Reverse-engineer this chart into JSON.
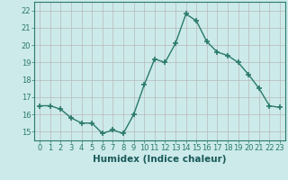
{
  "x": [
    0,
    1,
    2,
    3,
    4,
    5,
    6,
    7,
    8,
    9,
    10,
    11,
    12,
    13,
    14,
    15,
    16,
    17,
    18,
    19,
    20,
    21,
    22,
    23
  ],
  "y": [
    16.5,
    16.5,
    16.3,
    15.8,
    15.5,
    15.5,
    14.9,
    15.1,
    14.9,
    16.0,
    17.7,
    19.2,
    19.0,
    20.1,
    21.8,
    21.4,
    20.2,
    19.6,
    19.4,
    19.0,
    18.3,
    17.5,
    16.5,
    16.4
  ],
  "line_color": "#2a7a6a",
  "marker": "+",
  "marker_size": 4,
  "bg_color": "#cceaea",
  "grid_color_major": "#b8b8b8",
  "grid_color_minor": "#d8d8d8",
  "xlabel": "Humidex (Indice chaleur)",
  "xlim": [
    -0.5,
    23.5
  ],
  "ylim": [
    14.5,
    22.5
  ],
  "yticks": [
    15,
    16,
    17,
    18,
    19,
    20,
    21,
    22
  ],
  "xticks": [
    0,
    1,
    2,
    3,
    4,
    5,
    6,
    7,
    8,
    9,
    10,
    11,
    12,
    13,
    14,
    15,
    16,
    17,
    18,
    19,
    20,
    21,
    22,
    23
  ],
  "tick_fontsize": 6,
  "xlabel_fontsize": 7.5
}
